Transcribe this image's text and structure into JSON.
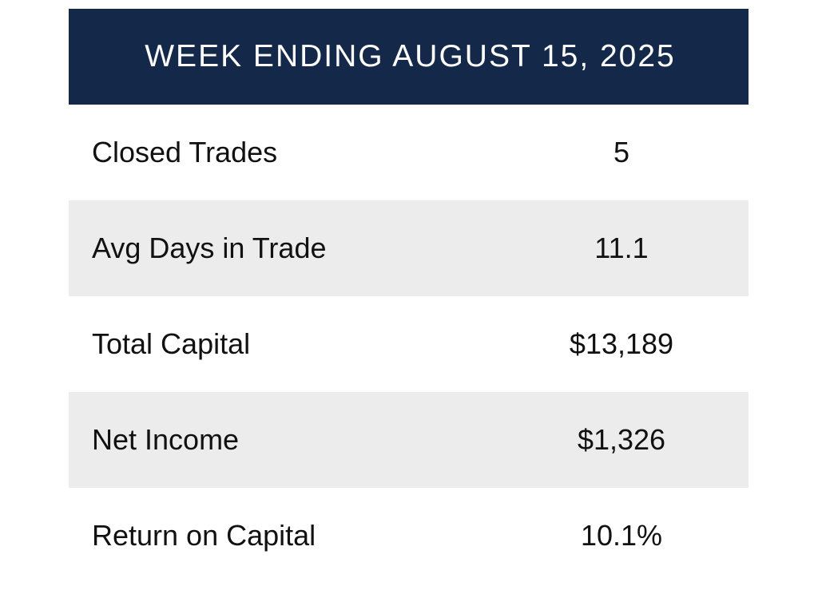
{
  "header": {
    "title": "WEEK ENDING AUGUST 15, 2025",
    "background_color": "#14294a"
  },
  "rows": [
    {
      "label": "Closed Trades",
      "value": "5"
    },
    {
      "label": "Avg Days in Trade",
      "value": "11.1"
    },
    {
      "label": "Total Capital",
      "value": "$13,189"
    },
    {
      "label": "Net Income",
      "value": "$1,326"
    },
    {
      "label": "Return on Capital",
      "value": "10.1%"
    }
  ],
  "colors": {
    "shaded_row": "#ececec",
    "text": "#111111"
  }
}
